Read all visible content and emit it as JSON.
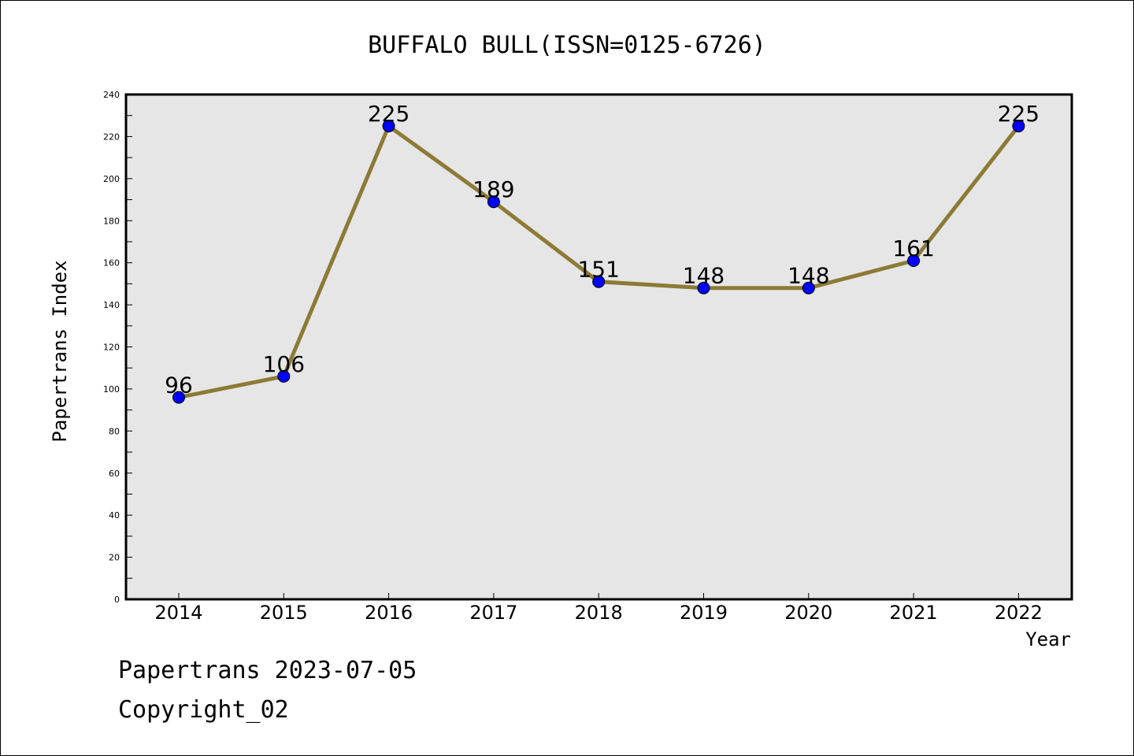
{
  "chart_data": {
    "type": "line",
    "title": "BUFFALO BULL(ISSN=0125-6726)",
    "xlabel": "Year",
    "ylabel": "Papertrans Index",
    "categories": [
      "2014",
      "2015",
      "2016",
      "2017",
      "2018",
      "2019",
      "2020",
      "2021",
      "2022"
    ],
    "series": [
      {
        "values": [
          96,
          106,
          225,
          189,
          151,
          148,
          148,
          161,
          225
        ]
      }
    ],
    "ylim": [
      0,
      240
    ],
    "yticks": [
      0,
      20,
      40,
      60,
      80,
      100,
      120,
      140,
      160,
      180,
      200,
      220,
      240
    ],
    "grid": false,
    "colors": {
      "line": "#8c7a35",
      "marker": "#0000ff",
      "plot_background": "#e6e6e6"
    }
  },
  "footer": {
    "line1": "Papertrans 2023-07-05",
    "line2": "Copyright_02"
  }
}
